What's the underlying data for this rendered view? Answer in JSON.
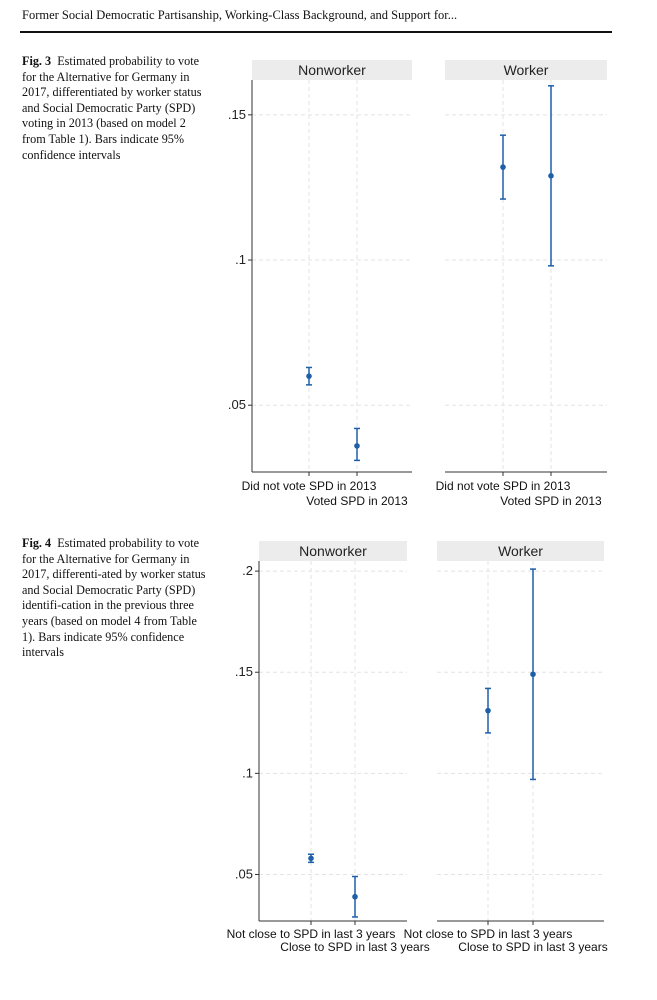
{
  "header": "Former Social Democratic Partisanship, Working-Class Background, and Support for...",
  "figures": [
    {
      "label": "Fig. 3",
      "caption": "Estimated probability to vote for the Alternative for Germany in 2017, differentiated by worker status and Social Democratic Party (SPD) voting in 2013 (based on model 2 from Table 1). Bars indicate 95% confidence intervals"
    },
    {
      "label": "Fig. 4",
      "caption": "Estimated probability to vote for the Alternative for Germany in 2017, differenti-ated by worker status and Social Democratic Party (SPD) identifi-cation in the previous three years (based on model 4 from Table 1). Bars indicate 95% confidence intervals"
    }
  ],
  "chart_data": [
    {
      "type": "scatter",
      "title": "",
      "panels": [
        "Nonworker",
        "Worker"
      ],
      "categories": [
        "Did not vote SPD in 2013",
        "Voted SPD in 2013"
      ],
      "yticks": [
        ".05",
        ".1",
        ".15"
      ],
      "ylim": [
        0.027,
        0.162
      ],
      "yticks_values": [
        0.05,
        0.1,
        0.15
      ],
      "series": [
        {
          "panel": "Nonworker",
          "values": [
            0.06,
            0.036
          ],
          "ci_low": [
            0.057,
            0.031
          ],
          "ci_high": [
            0.063,
            0.042
          ]
        },
        {
          "panel": "Worker",
          "values": [
            0.132,
            0.129
          ],
          "ci_low": [
            0.121,
            0.098
          ],
          "ci_high": [
            0.143,
            0.16
          ]
        }
      ],
      "error_bars": "95% confidence intervals",
      "grid": true,
      "color": "#1f5fa8"
    },
    {
      "type": "scatter",
      "title": "",
      "panels": [
        "Nonworker",
        "Worker"
      ],
      "categories": [
        "Not close to SPD in last 3 years",
        "Close to SPD in last 3 years"
      ],
      "yticks": [
        ".05",
        ".1",
        ".15",
        ".2"
      ],
      "ylim": [
        0.027,
        0.205
      ],
      "yticks_values": [
        0.05,
        0.1,
        0.15,
        0.2
      ],
      "series": [
        {
          "panel": "Nonworker",
          "values": [
            0.058,
            0.039
          ],
          "ci_low": [
            0.056,
            0.029
          ],
          "ci_high": [
            0.06,
            0.049
          ]
        },
        {
          "panel": "Worker",
          "values": [
            0.131,
            0.149
          ],
          "ci_low": [
            0.12,
            0.097
          ],
          "ci_high": [
            0.142,
            0.201
          ]
        }
      ],
      "error_bars": "95% confidence intervals",
      "grid": true,
      "color": "#1f5fa8"
    }
  ]
}
